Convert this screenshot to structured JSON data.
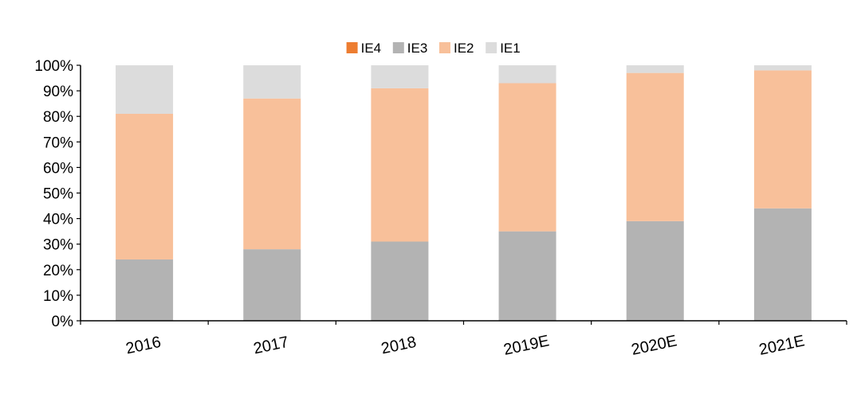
{
  "chart_data": {
    "type": "bar",
    "stacked": true,
    "percent": true,
    "categories": [
      "2016",
      "2017",
      "2018",
      "2019E",
      "2020E",
      "2021E"
    ],
    "series": [
      {
        "name": "IE4",
        "color": "#ED7D31",
        "values": [
          0,
          0,
          0,
          0,
          0,
          0
        ]
      },
      {
        "name": "IE3",
        "color": "#B3B3B3",
        "values": [
          24,
          28,
          31,
          35,
          39,
          44
        ]
      },
      {
        "name": "IE2",
        "color": "#F8C09A",
        "values": [
          57,
          59,
          60,
          58,
          58,
          54
        ]
      },
      {
        "name": "IE1",
        "color": "#DCDCDC",
        "values": [
          19,
          13,
          9,
          7,
          3,
          2
        ]
      }
    ],
    "legend_order": [
      "IE4",
      "IE3",
      "IE2",
      "IE1"
    ],
    "yticks": [
      "0%",
      "10%",
      "20%",
      "30%",
      "40%",
      "50%",
      "60%",
      "70%",
      "80%",
      "90%",
      "100%"
    ],
    "ylim": [
      0,
      100
    ],
    "legend_position": "top-center",
    "grid": false
  }
}
